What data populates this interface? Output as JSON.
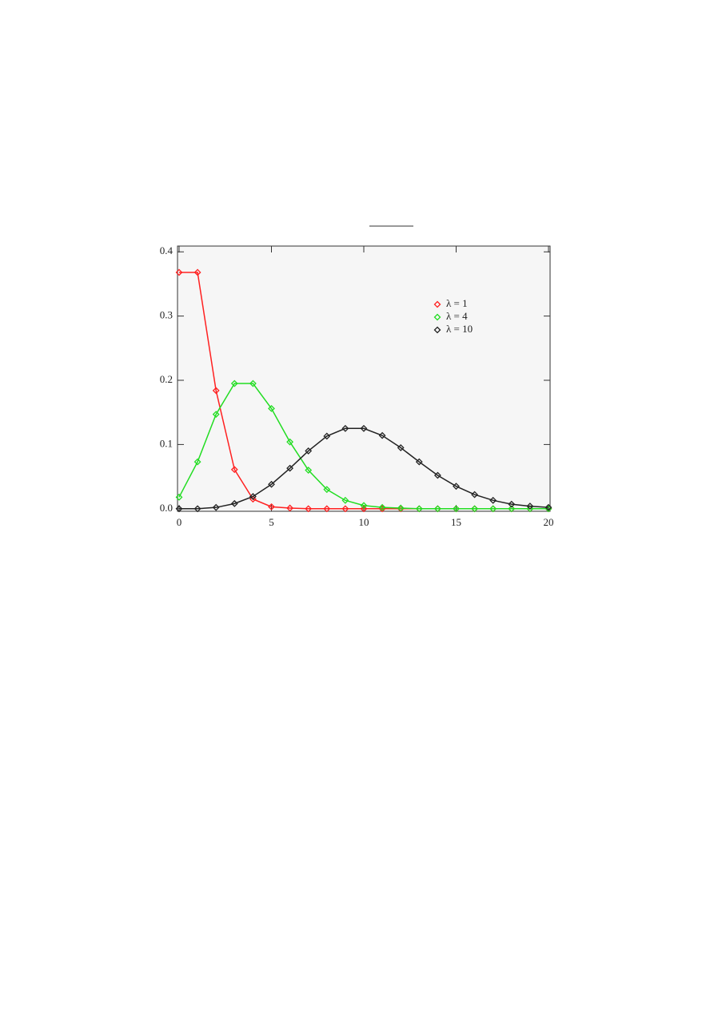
{
  "chart_data": {
    "type": "line",
    "x": [
      0,
      1,
      2,
      3,
      4,
      5,
      6,
      7,
      8,
      9,
      10,
      11,
      12,
      13,
      14,
      15,
      16,
      17,
      18,
      19,
      20
    ],
    "xlim": [
      0,
      20
    ],
    "xticks": [
      0,
      5,
      10,
      15,
      20
    ],
    "ylim": [
      -0.004,
      0.409
    ],
    "yticks": [
      {
        "value": 0,
        "label": "0.0"
      },
      0.1,
      0.2,
      0.3,
      0.4
    ],
    "legend": "upper right",
    "series": [
      {
        "name": "λ = 1",
        "color": "#ff2020",
        "values": [
          0.368,
          0.368,
          0.184,
          0.061,
          0.015,
          0.003,
          0.001,
          0,
          0,
          0,
          0,
          0,
          0,
          0,
          0,
          0,
          0,
          0,
          0,
          0,
          0
        ]
      },
      {
        "name": "λ = 4",
        "color": "#22dd22",
        "values": [
          0.018,
          0.073,
          0.147,
          0.195,
          0.195,
          0.156,
          0.104,
          0.06,
          0.03,
          0.013,
          0.005,
          0.002,
          0.001,
          0,
          0,
          0,
          0,
          0,
          0,
          0,
          0
        ]
      },
      {
        "name": "λ = 10",
        "color": "#222222",
        "values": [
          0,
          0,
          0.002,
          0.008,
          0.019,
          0.038,
          0.063,
          0.09,
          0.113,
          0.125,
          0.125,
          0.114,
          0.095,
          0.073,
          0.052,
          0.035,
          0.022,
          0.013,
          0.007,
          0.004,
          0.002
        ]
      }
    ]
  }
}
